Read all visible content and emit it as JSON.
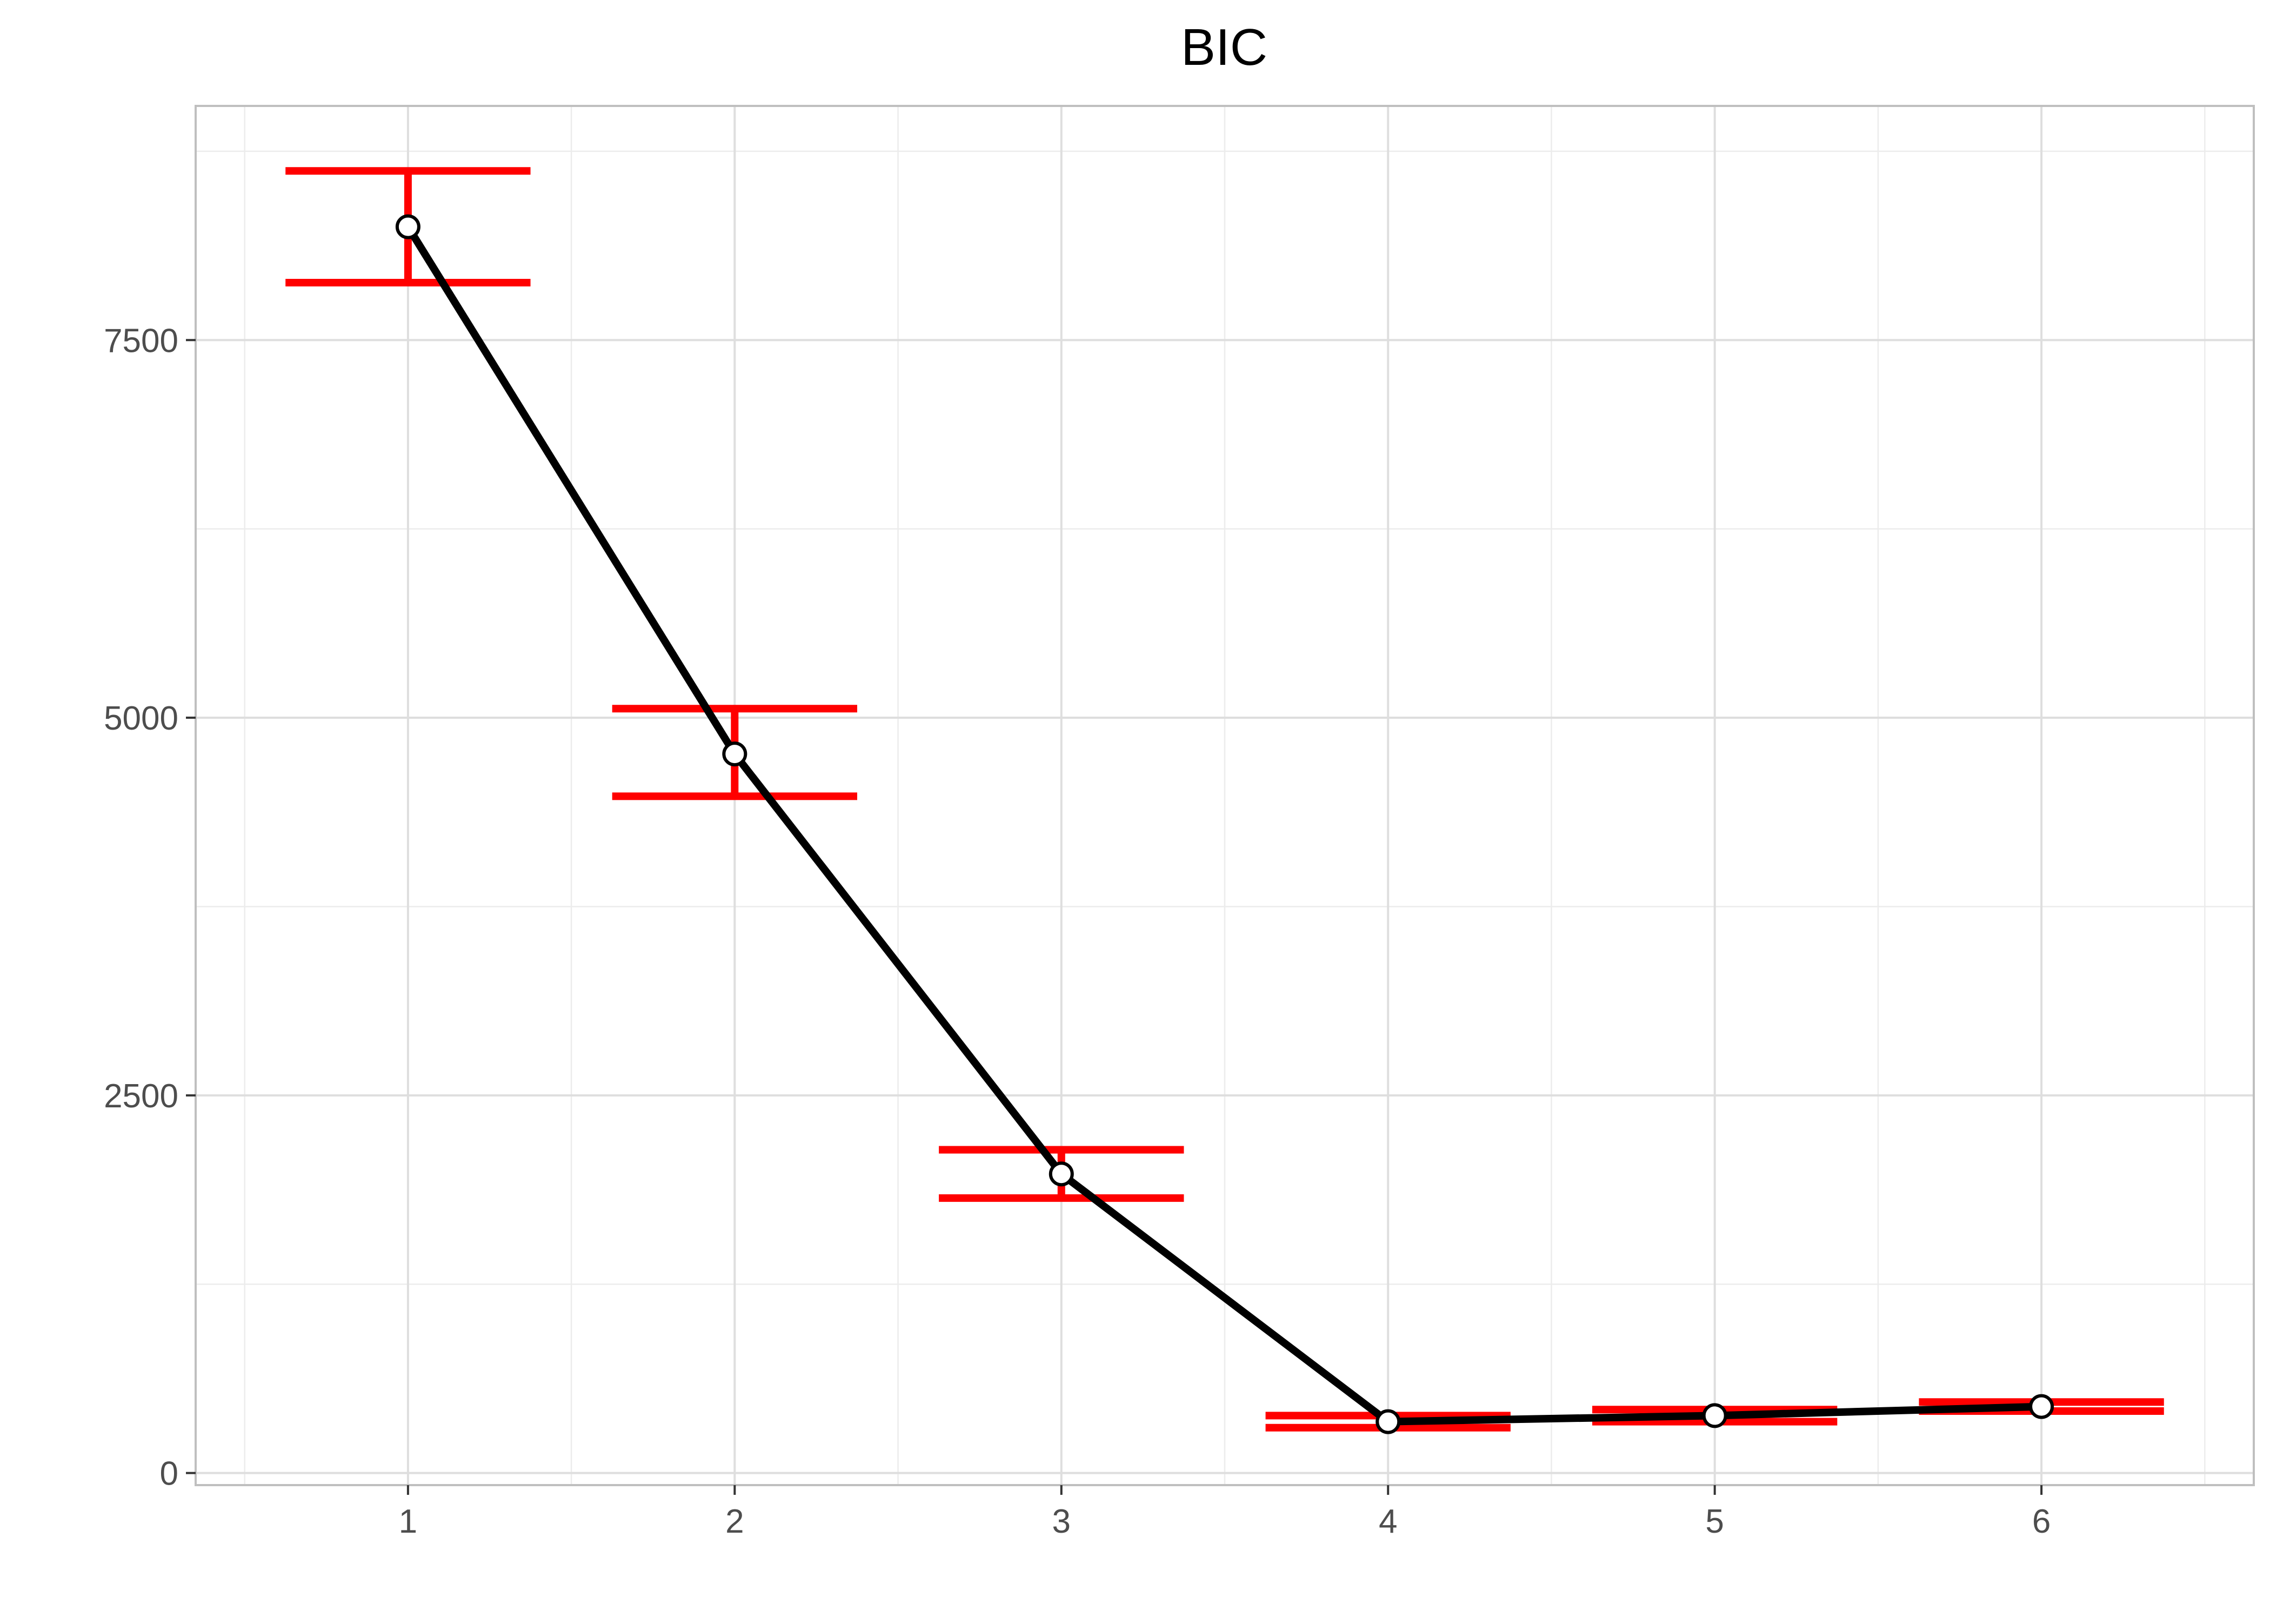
{
  "chart_data": {
    "type": "line",
    "title": "BIC",
    "xlabel": "",
    "ylabel": "",
    "x": [
      1,
      2,
      3,
      4,
      5,
      6
    ],
    "x_tick_labels": [
      "1",
      "2",
      "3",
      "4",
      "5",
      "6"
    ],
    "xlim": [
      0.35,
      6.65
    ],
    "y_ticks": [
      0,
      2500,
      5000,
      7500
    ],
    "y_tick_labels": [
      "0",
      "2500",
      "5000",
      "7500"
    ],
    "y_minor_ticks": [
      1250,
      3750,
      6250,
      8750
    ],
    "ylim": [
      -80,
      9050
    ],
    "grid": true,
    "legend": "none",
    "series": [
      {
        "values": [
          8250,
          4760,
          1980,
          340,
          380,
          440
        ],
        "error_low": [
          7880,
          4480,
          1820,
          300,
          340,
          410
        ],
        "error_high": [
          8620,
          5060,
          2140,
          380,
          420,
          470
        ],
        "line_color": "#000000",
        "error_color": "#ff0000",
        "point_fill": "#ffffff"
      }
    ]
  }
}
